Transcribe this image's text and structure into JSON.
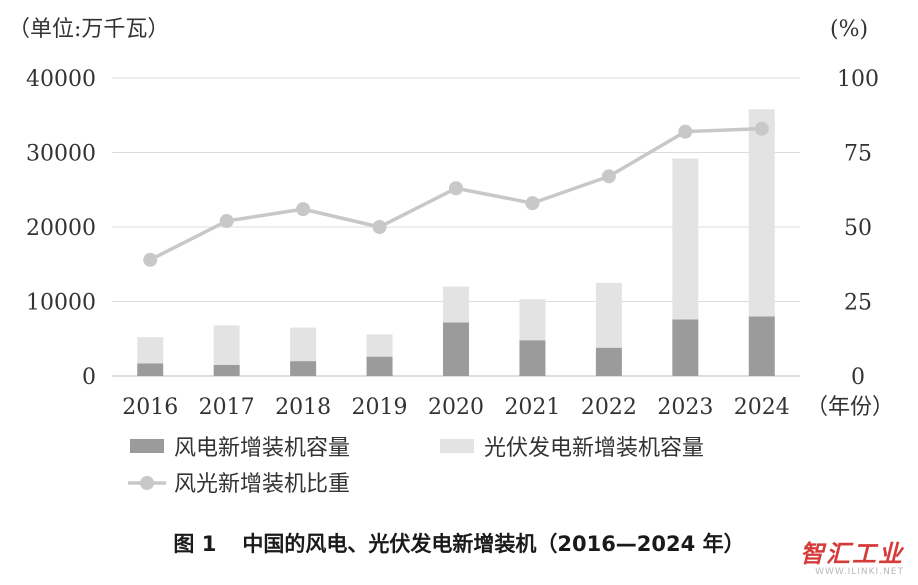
{
  "chart_data": {
    "type": "bar",
    "stacked": true,
    "categories": [
      "2016",
      "2017",
      "2018",
      "2019",
      "2020",
      "2021",
      "2022",
      "2023",
      "2024"
    ],
    "series": [
      {
        "name": "风电新增装机容量",
        "type": "bar",
        "axis": "left",
        "color": "#9b9b9b",
        "values": [
          1700,
          1500,
          2000,
          2600,
          7200,
          4800,
          3800,
          7600,
          8000
        ]
      },
      {
        "name": "光伏发电新增装机容量",
        "type": "bar",
        "axis": "left",
        "color": "#e3e3e3",
        "values": [
          3500,
          5300,
          4500,
          3000,
          4800,
          5500,
          8700,
          21600,
          27800
        ]
      },
      {
        "name": "风光新增装机比重",
        "type": "line",
        "axis": "right",
        "color": "#c8c8c8",
        "values": [
          39,
          52,
          56,
          50,
          63,
          58,
          67,
          82,
          83
        ]
      }
    ],
    "left_axis": {
      "label": "（单位:万千瓦）",
      "range": [
        0,
        40000
      ],
      "ticks": [
        "0",
        "10000",
        "20000",
        "30000",
        "40000"
      ]
    },
    "right_axis": {
      "label": "(%)",
      "range": [
        0,
        100
      ],
      "ticks": [
        "0",
        "25",
        "50",
        "75",
        "100"
      ]
    },
    "xlabel": "（年份）",
    "legend": [
      {
        "label": "风电新增装机容量",
        "style": "bar",
        "color": "#9b9b9b"
      },
      {
        "label": "光伏发电新增装机容量",
        "style": "bar",
        "color": "#e3e3e3"
      },
      {
        "label": "风光新增装机比重",
        "style": "line",
        "color": "#c8c8c8"
      }
    ],
    "title": "图 1　中国的风电、光伏发电新增装机（2016—2024 年）"
  },
  "caption": {
    "number": "图 1",
    "text": "中国的风电、光伏发电新增装机（2016—2024 年）"
  },
  "watermark": {
    "name": "智汇工业",
    "url": "WWW.ILINKI.NET"
  }
}
